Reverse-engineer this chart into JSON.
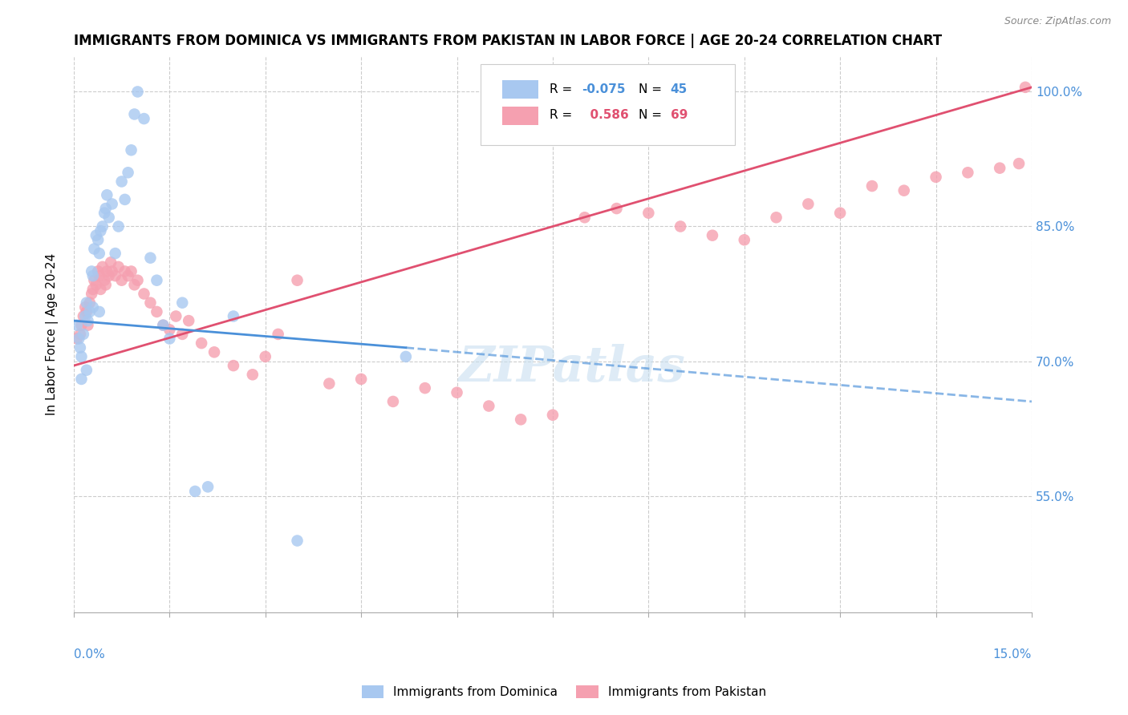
{
  "title": "IMMIGRANTS FROM DOMINICA VS IMMIGRANTS FROM PAKISTAN IN LABOR FORCE | AGE 20-24 CORRELATION CHART",
  "source": "Source: ZipAtlas.com",
  "ylabel": "In Labor Force | Age 20-24",
  "yticks": [
    55.0,
    70.0,
    85.0,
    100.0
  ],
  "ytick_labels": [
    "55.0%",
    "70.0%",
    "85.0%",
    "100.0%"
  ],
  "xlim": [
    0.0,
    15.0
  ],
  "ylim": [
    42.0,
    104.0
  ],
  "color_dominica": "#a8c8f0",
  "color_pakistan": "#f5a0b0",
  "watermark": "ZIPatlas",
  "dom_line_x0": 0.0,
  "dom_line_y0": 74.5,
  "dom_line_x1": 5.2,
  "dom_line_y1": 71.5,
  "dom_line_x2": 15.0,
  "dom_line_y2": 65.5,
  "pak_line_x0": 0.0,
  "pak_line_y0": 69.5,
  "pak_line_x1": 15.0,
  "pak_line_y1": 100.5,
  "dominica_scatter_x": [
    0.05,
    0.08,
    0.1,
    0.12,
    0.12,
    0.15,
    0.18,
    0.2,
    0.2,
    0.22,
    0.25,
    0.28,
    0.3,
    0.3,
    0.32,
    0.35,
    0.38,
    0.4,
    0.4,
    0.42,
    0.45,
    0.48,
    0.5,
    0.52,
    0.55,
    0.6,
    0.65,
    0.7,
    0.75,
    0.8,
    0.85,
    0.9,
    0.95,
    1.0,
    1.1,
    1.2,
    1.3,
    1.4,
    1.5,
    1.7,
    1.9,
    2.1,
    2.5,
    3.5,
    5.2
  ],
  "dominica_scatter_y": [
    74.0,
    72.5,
    71.5,
    70.5,
    68.0,
    73.0,
    75.0,
    76.5,
    69.0,
    74.5,
    75.5,
    80.0,
    79.5,
    76.0,
    82.5,
    84.0,
    83.5,
    82.0,
    75.5,
    84.5,
    85.0,
    86.5,
    87.0,
    88.5,
    86.0,
    87.5,
    82.0,
    85.0,
    90.0,
    88.0,
    91.0,
    93.5,
    97.5,
    100.0,
    97.0,
    81.5,
    79.0,
    74.0,
    72.5,
    76.5,
    55.5,
    56.0,
    75.0,
    50.0,
    70.5
  ],
  "pakistan_scatter_x": [
    0.05,
    0.1,
    0.12,
    0.15,
    0.18,
    0.2,
    0.22,
    0.25,
    0.28,
    0.3,
    0.32,
    0.35,
    0.38,
    0.4,
    0.42,
    0.45,
    0.48,
    0.5,
    0.52,
    0.55,
    0.58,
    0.6,
    0.65,
    0.7,
    0.75,
    0.8,
    0.85,
    0.9,
    0.95,
    1.0,
    1.1,
    1.2,
    1.3,
    1.4,
    1.5,
    1.6,
    1.7,
    1.8,
    2.0,
    2.2,
    2.5,
    2.8,
    3.0,
    3.2,
    3.5,
    4.0,
    4.5,
    5.0,
    5.5,
    6.0,
    6.5,
    7.0,
    7.5,
    8.0,
    8.5,
    9.0,
    9.5,
    10.0,
    10.5,
    11.0,
    11.5,
    12.0,
    12.5,
    13.0,
    13.5,
    14.0,
    14.5,
    14.8,
    14.9
  ],
  "pakistan_scatter_y": [
    72.5,
    73.0,
    74.0,
    75.0,
    76.0,
    75.5,
    74.0,
    76.5,
    77.5,
    78.0,
    79.0,
    78.5,
    80.0,
    79.5,
    78.0,
    80.5,
    79.0,
    78.5,
    80.0,
    79.5,
    81.0,
    80.0,
    79.5,
    80.5,
    79.0,
    80.0,
    79.5,
    80.0,
    78.5,
    79.0,
    77.5,
    76.5,
    75.5,
    74.0,
    73.5,
    75.0,
    73.0,
    74.5,
    72.0,
    71.0,
    69.5,
    68.5,
    70.5,
    73.0,
    79.0,
    67.5,
    68.0,
    65.5,
    67.0,
    66.5,
    65.0,
    63.5,
    64.0,
    86.0,
    87.0,
    86.5,
    85.0,
    84.0,
    83.5,
    86.0,
    87.5,
    86.5,
    89.5,
    89.0,
    90.5,
    91.0,
    91.5,
    92.0,
    100.5
  ]
}
